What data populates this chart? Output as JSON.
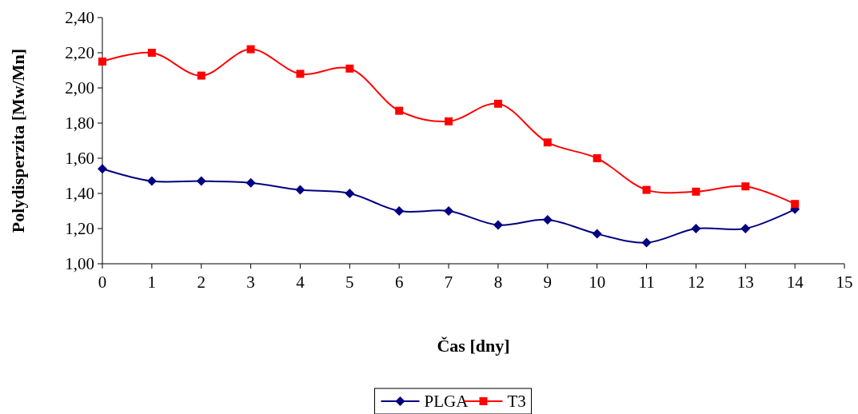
{
  "chart_data": {
    "type": "line",
    "xlabel": "Čas [dny]",
    "ylabel": "Polydisperzita [Mw/Mn]",
    "x": [
      0,
      1,
      2,
      3,
      4,
      5,
      6,
      7,
      8,
      9,
      10,
      11,
      12,
      13,
      14
    ],
    "series": [
      {
        "name": "PLGA",
        "color": "#000080",
        "marker": "diamond",
        "values": [
          1.54,
          1.47,
          1.47,
          1.46,
          1.42,
          1.4,
          1.3,
          1.3,
          1.22,
          1.25,
          1.17,
          1.12,
          1.2,
          1.2,
          1.31
        ]
      },
      {
        "name": "T3",
        "color": "#ff0000",
        "marker": "square",
        "values": [
          2.15,
          2.2,
          2.07,
          2.22,
          2.08,
          2.11,
          1.87,
          1.81,
          1.91,
          1.69,
          1.6,
          1.42,
          1.41,
          1.44,
          1.34
        ]
      }
    ],
    "xlim": [
      0,
      15
    ],
    "xticks": [
      0,
      1,
      2,
      3,
      4,
      5,
      6,
      7,
      8,
      9,
      10,
      11,
      12,
      13,
      14,
      15
    ],
    "ylim": [
      1,
      2.4
    ],
    "yticks": [
      {
        "value": 1,
        "label": "1,00"
      },
      {
        "value": 1.2,
        "label": "1,20"
      },
      {
        "value": 1.4,
        "label": "1,40"
      },
      {
        "value": 1.6,
        "label": "1,60"
      },
      {
        "value": 1.8,
        "label": "1,80"
      },
      {
        "value": 2,
        "label": "2,00"
      },
      {
        "value": 2.2,
        "label": "2,20"
      },
      {
        "value": 2.4,
        "label": "2,40"
      }
    ],
    "grid": false,
    "legend": "bottom",
    "line_style": "solid"
  }
}
